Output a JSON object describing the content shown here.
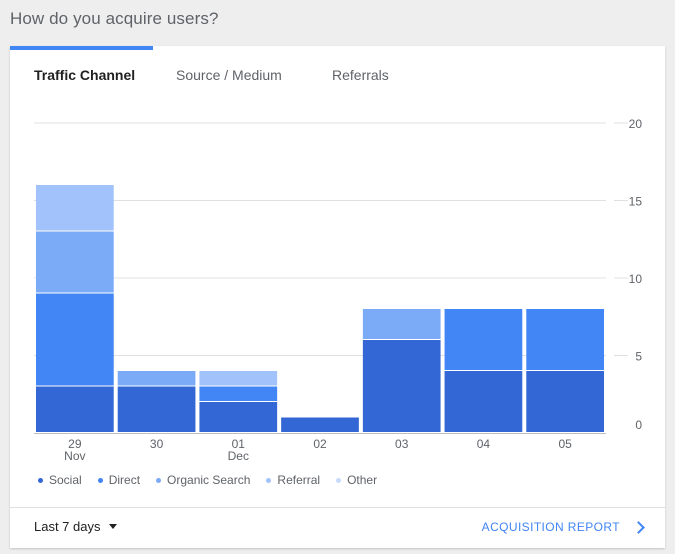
{
  "page": {
    "title": "How do you acquire users?"
  },
  "tabs": [
    {
      "label": "Traffic Channel",
      "active": true
    },
    {
      "label": "Source / Medium",
      "active": false
    },
    {
      "label": "Referrals",
      "active": false
    }
  ],
  "chart_data": {
    "type": "bar",
    "stacked": true,
    "categories": [
      "29\nNov",
      "30",
      "01\nDec",
      "02",
      "03",
      "04",
      "05"
    ],
    "series": [
      {
        "name": "Social",
        "color": "#3367d6",
        "values": [
          3,
          3,
          2,
          1,
          6,
          4,
          4
        ]
      },
      {
        "name": "Direct",
        "color": "#4285f4",
        "values": [
          6,
          0,
          1,
          0,
          0,
          4,
          4
        ]
      },
      {
        "name": "Organic Search",
        "color": "#7baaf7",
        "values": [
          4,
          1,
          0,
          0,
          2,
          0,
          0
        ]
      },
      {
        "name": "Referral",
        "color": "#a1c2fa",
        "values": [
          3,
          0,
          1,
          0,
          0,
          0,
          0
        ]
      },
      {
        "name": "Other",
        "color": "#c6dafc",
        "values": [
          0,
          0,
          0,
          0,
          0,
          0,
          0
        ]
      }
    ],
    "yticks": [
      0,
      5,
      10,
      15,
      20
    ],
    "ylim": [
      0,
      20
    ],
    "grid": true,
    "legend": "bottom"
  },
  "footer": {
    "range_label": "Last 7 days",
    "report_link": "ACQUISITION REPORT"
  },
  "colors": {
    "accent": "#4285f4",
    "text": "#212121",
    "muted": "#5f6368"
  }
}
